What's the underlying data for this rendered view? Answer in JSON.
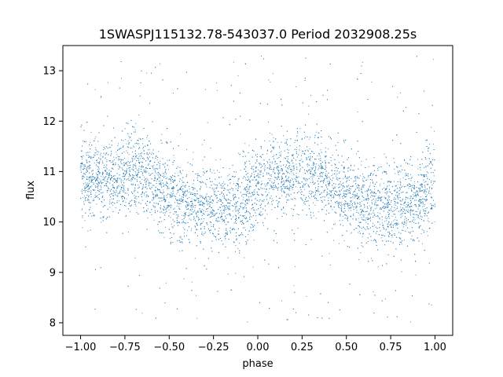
{
  "chart_data": {
    "type": "scatter",
    "title": "1SWASPJ115132.78-543037.0 Period 2032908.25s",
    "xlabel": "phase",
    "ylabel": "flux",
    "xlim": [
      -1.1,
      1.1
    ],
    "ylim": [
      7.75,
      13.5
    ],
    "xticks": [
      -1.0,
      -0.75,
      -0.5,
      -0.25,
      0.0,
      0.25,
      0.5,
      0.75,
      1.0
    ],
    "xtick_labels": [
      "−1.00",
      "−0.75",
      "−0.50",
      "−0.25",
      "0.00",
      "0.25",
      "0.50",
      "0.75",
      "1.00"
    ],
    "yticks": [
      8,
      9,
      10,
      11,
      12,
      13
    ],
    "ytick_labels": [
      "8",
      "9",
      "10",
      "11",
      "12",
      "13"
    ],
    "grid": false,
    "color": "#1f77b4",
    "series": [
      {
        "phase_range": [
          -1.0,
          1.0
        ],
        "mean_flux_profile": {
          "phase": [
            -1.0,
            -0.9,
            -0.8,
            -0.7,
            -0.65,
            -0.6,
            -0.5,
            -0.4,
            -0.3,
            -0.2,
            -0.1,
            0.0,
            0.1,
            0.2,
            0.3,
            0.35,
            0.4,
            0.5,
            0.6,
            0.7,
            0.8,
            0.9,
            1.0
          ],
          "flux": [
            10.8,
            10.9,
            10.9,
            11.0,
            11.05,
            10.8,
            10.5,
            10.35,
            10.3,
            10.3,
            10.35,
            10.7,
            10.9,
            10.9,
            11.0,
            11.05,
            10.8,
            10.5,
            10.35,
            10.3,
            10.3,
            10.35,
            10.7
          ]
        },
        "scatter_std": 0.4,
        "outlier_range": [
          8.0,
          13.3
        ]
      }
    ]
  }
}
